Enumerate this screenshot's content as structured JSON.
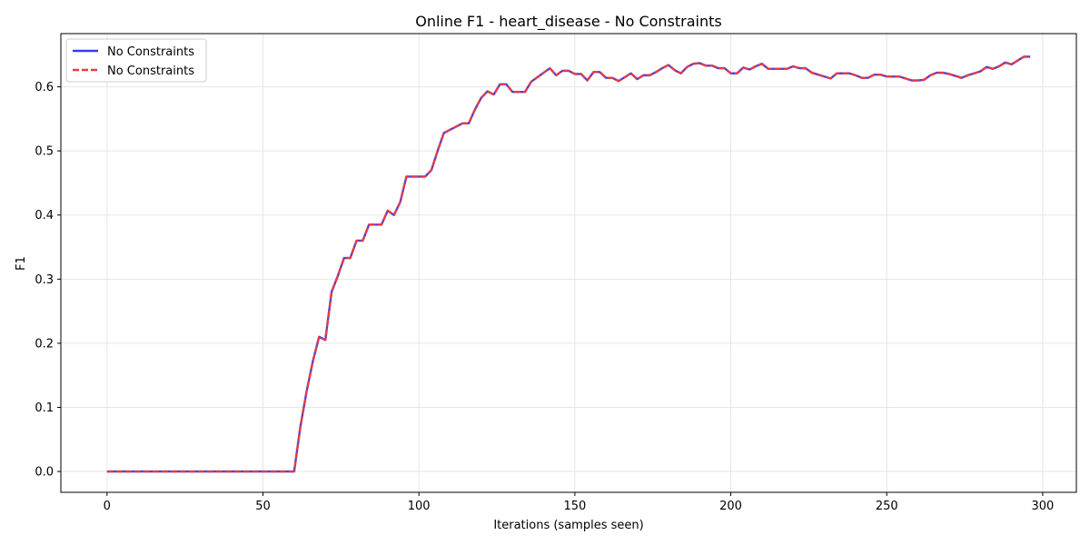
{
  "chart_data": {
    "type": "line",
    "title": "Online F1 - heart_disease - No Constraints",
    "xlabel": "Iterations (samples seen)",
    "ylabel": "F1",
    "xlim": [
      -14.8,
      310.8
    ],
    "ylim": [
      -0.0325,
      0.683
    ],
    "xticks": [
      0,
      50,
      100,
      150,
      200,
      250,
      300
    ],
    "yticks": [
      0.0,
      0.1,
      0.2,
      0.3,
      0.4,
      0.5,
      0.6
    ],
    "ytick_labels": [
      "0.0",
      "0.1",
      "0.2",
      "0.3",
      "0.4",
      "0.5",
      "0.6"
    ],
    "grid": true,
    "legend_position": "upper-left",
    "x": [
      0,
      60,
      62,
      64,
      66,
      68,
      70,
      72,
      74,
      76,
      78,
      80,
      82,
      84,
      86,
      88,
      90,
      92,
      94,
      96,
      98,
      100,
      102,
      104,
      106,
      108,
      110,
      112,
      114,
      116,
      118,
      120,
      122,
      124,
      126,
      128,
      130,
      132,
      134,
      136,
      138,
      140,
      142,
      144,
      146,
      148,
      150,
      152,
      154,
      156,
      158,
      160,
      162,
      164,
      166,
      168,
      170,
      172,
      174,
      176,
      178,
      180,
      182,
      184,
      186,
      188,
      190,
      192,
      194,
      196,
      198,
      200,
      202,
      204,
      206,
      208,
      210,
      212,
      214,
      216,
      218,
      220,
      222,
      224,
      226,
      228,
      230,
      232,
      234,
      236,
      238,
      240,
      242,
      244,
      246,
      248,
      250,
      252,
      254,
      256,
      258,
      260,
      262,
      264,
      266,
      268,
      270,
      272,
      274,
      276,
      278,
      280,
      282,
      284,
      286,
      288,
      290,
      292,
      294,
      296
    ],
    "series": [
      {
        "name": "No Constraints",
        "color": "#3b3be6",
        "style": "solid",
        "values": [
          0.0,
          0.0,
          0.07,
          0.125,
          0.172,
          0.21,
          0.205,
          0.28,
          0.305,
          0.333,
          0.333,
          0.36,
          0.36,
          0.385,
          0.385,
          0.385,
          0.407,
          0.4,
          0.42,
          0.46,
          0.46,
          0.46,
          0.46,
          0.47,
          0.5,
          0.528,
          0.533,
          0.538,
          0.543,
          0.543,
          0.565,
          0.583,
          0.593,
          0.588,
          0.604,
          0.604,
          0.592,
          0.592,
          0.592,
          0.608,
          0.615,
          0.622,
          0.629,
          0.618,
          0.625,
          0.625,
          0.62,
          0.62,
          0.61,
          0.623,
          0.623,
          0.614,
          0.614,
          0.609,
          0.615,
          0.621,
          0.612,
          0.618,
          0.618,
          0.623,
          0.629,
          0.634,
          0.626,
          0.621,
          0.631,
          0.636,
          0.637,
          0.633,
          0.633,
          0.629,
          0.629,
          0.621,
          0.621,
          0.63,
          0.627,
          0.632,
          0.636,
          0.628,
          0.628,
          0.628,
          0.628,
          0.632,
          0.629,
          0.629,
          0.622,
          0.619,
          0.616,
          0.613,
          0.621,
          0.621,
          0.621,
          0.618,
          0.614,
          0.614,
          0.619,
          0.619,
          0.616,
          0.616,
          0.616,
          0.613,
          0.61,
          0.61,
          0.611,
          0.618,
          0.622,
          0.622,
          0.62,
          0.617,
          0.614,
          0.618,
          0.621,
          0.624,
          0.631,
          0.628,
          0.632,
          0.638,
          0.635,
          0.641,
          0.647,
          0.647
        ]
      },
      {
        "name": "No Constraints",
        "color": "#ef3a3a",
        "style": "dashed",
        "values": [
          0.0,
          0.0,
          0.07,
          0.125,
          0.172,
          0.21,
          0.205,
          0.28,
          0.305,
          0.333,
          0.333,
          0.36,
          0.36,
          0.385,
          0.385,
          0.385,
          0.407,
          0.4,
          0.42,
          0.46,
          0.46,
          0.46,
          0.46,
          0.47,
          0.5,
          0.528,
          0.533,
          0.538,
          0.543,
          0.543,
          0.565,
          0.583,
          0.593,
          0.588,
          0.604,
          0.604,
          0.592,
          0.592,
          0.592,
          0.608,
          0.615,
          0.622,
          0.629,
          0.618,
          0.625,
          0.625,
          0.62,
          0.62,
          0.61,
          0.623,
          0.623,
          0.614,
          0.614,
          0.609,
          0.615,
          0.621,
          0.612,
          0.618,
          0.618,
          0.623,
          0.629,
          0.634,
          0.626,
          0.621,
          0.631,
          0.636,
          0.637,
          0.633,
          0.633,
          0.629,
          0.629,
          0.621,
          0.621,
          0.63,
          0.627,
          0.632,
          0.636,
          0.628,
          0.628,
          0.628,
          0.628,
          0.632,
          0.629,
          0.629,
          0.622,
          0.619,
          0.616,
          0.613,
          0.621,
          0.621,
          0.621,
          0.618,
          0.614,
          0.614,
          0.619,
          0.619,
          0.616,
          0.616,
          0.616,
          0.613,
          0.61,
          0.61,
          0.611,
          0.618,
          0.622,
          0.622,
          0.62,
          0.617,
          0.614,
          0.618,
          0.621,
          0.624,
          0.631,
          0.628,
          0.632,
          0.638,
          0.635,
          0.641,
          0.647,
          0.647
        ]
      }
    ]
  }
}
